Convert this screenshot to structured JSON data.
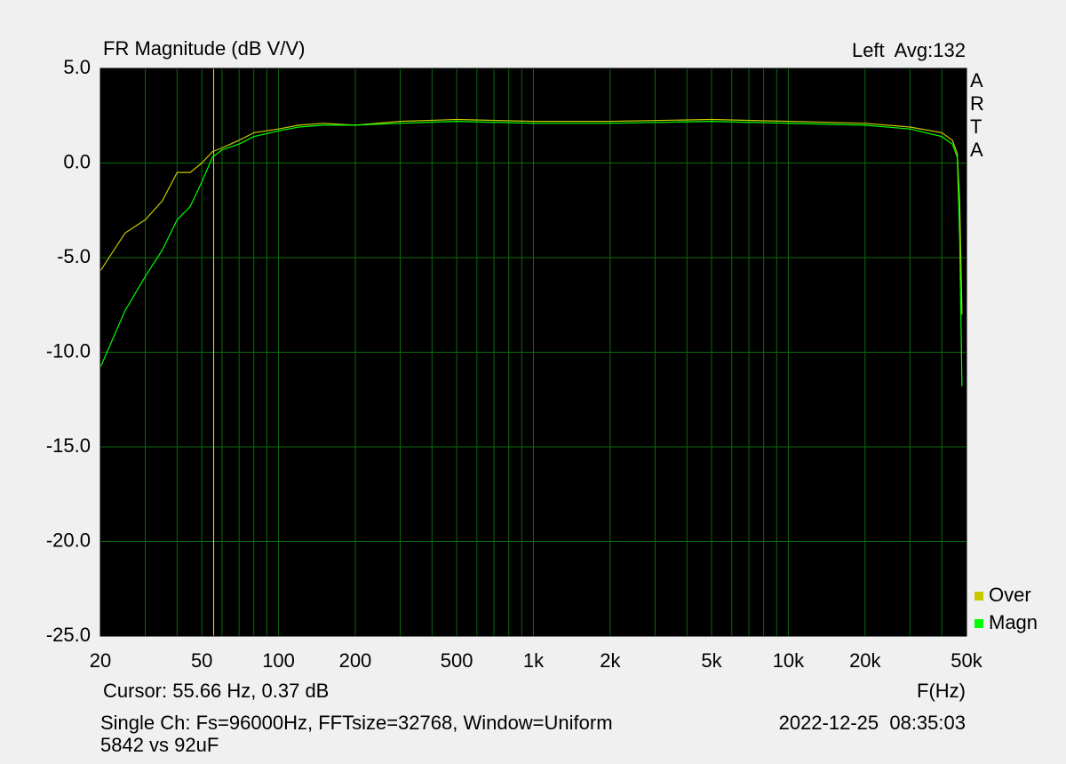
{
  "chart_data": {
    "type": "line",
    "title": "FR Magnitude (dB V/V)",
    "channel_label": "Left  Avg:132",
    "brand": "ARTA",
    "x_label": "F(Hz)",
    "cursor": {
      "x": 55.66,
      "label": "Cursor: 55.66 Hz, 0.37 dB",
      "color": "#e8e800"
    },
    "footer": "Single Ch: Fs=96000Hz, FFTsize=32768, Window=Uniform",
    "timestamp": "2022-12-25  08:35:03",
    "note": "5842 vs 92uF",
    "xscale": "log",
    "grid": true,
    "x": [
      20,
      25,
      30,
      35,
      40,
      45,
      50,
      55,
      60,
      70,
      80,
      100,
      120,
      150,
      200,
      300,
      500,
      1000,
      2000,
      5000,
      10000,
      20000,
      30000,
      40000,
      44000,
      46000,
      47000,
      48000
    ],
    "series": [
      {
        "name": "Over",
        "color": "#c8c800",
        "values": [
          -5.7,
          -3.7,
          -3.0,
          -2.0,
          -0.5,
          -0.5,
          0.0,
          0.6,
          0.8,
          1.2,
          1.6,
          1.8,
          2.0,
          2.1,
          2.0,
          2.2,
          2.3,
          2.2,
          2.2,
          2.3,
          2.2,
          2.1,
          1.9,
          1.6,
          1.2,
          0.5,
          -2.0,
          -8.0
        ]
      },
      {
        "name": "Magn",
        "color": "#00ff00",
        "values": [
          -10.8,
          -7.8,
          -6.0,
          -4.6,
          -3.0,
          -2.3,
          -1.0,
          0.3,
          0.7,
          1.0,
          1.4,
          1.7,
          1.9,
          2.0,
          2.0,
          2.1,
          2.2,
          2.1,
          2.1,
          2.2,
          2.1,
          2.0,
          1.8,
          1.4,
          1.0,
          0.3,
          -4.0,
          -11.8
        ]
      }
    ],
    "xlim": [
      20,
      50000
    ],
    "xticks": [
      20,
      50,
      100,
      200,
      500,
      {
        "value": 1000,
        "label": "1k"
      },
      {
        "value": 2000,
        "label": "2k"
      },
      {
        "value": 5000,
        "label": "5k"
      },
      {
        "value": 10000,
        "label": "10k"
      },
      {
        "value": 20000,
        "label": "20k"
      },
      {
        "value": 50000,
        "label": "50k"
      }
    ],
    "xminor": [
      30,
      40,
      60,
      70,
      80,
      90,
      300,
      400,
      600,
      700,
      800,
      900,
      3000,
      4000,
      6000,
      7000,
      8000,
      9000,
      30000,
      40000
    ],
    "ylim": [
      -25,
      5
    ],
    "yticks": [
      {
        "value": 5,
        "label": "5.0"
      },
      {
        "value": 0,
        "label": "0.0"
      },
      {
        "value": -5,
        "label": "-5.0"
      },
      {
        "value": -10,
        "label": "-10.0"
      },
      {
        "value": -15,
        "label": "-15.0"
      },
      {
        "value": -20,
        "label": "-20.0"
      },
      {
        "value": -25,
        "label": "-25.0"
      }
    ]
  }
}
